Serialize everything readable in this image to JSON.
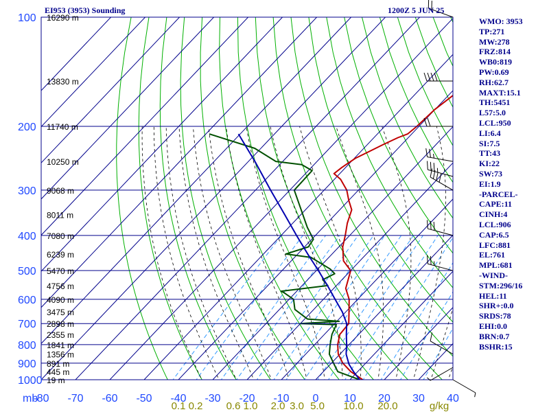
{
  "header": {
    "station": "EI953 (3953) Sounding",
    "time": "1200Z  5 JUN 25"
  },
  "indices": [
    "WMO: 3953",
    "TP:271",
    "MW:278",
    "FRZ:814",
    "WB0:819",
    "PW:0.69",
    "RH:62.7",
    "MAXT:15.1",
    "TH:5451",
    "L57:5.0",
    "LCL:950",
    "LI:6.4",
    "SI:7.5",
    "TT:43",
    "KI:22",
    "SW:73",
    "EI:1.9",
    "-PARCEL-",
    "CAPE:11",
    "CINH:4",
    "LCL:906",
    "CAP:6.5",
    "LFC:881",
    "EL:761",
    "MPL:681",
    "-WIND-",
    "STM:296/16",
    "HEL:11",
    "SHR+:0.0",
    "SRDS:78",
    "EHI:0.0",
    "BRN:0.7",
    "BSHR:15"
  ],
  "colors": {
    "grid": "#00008b",
    "dry_adiabat": "#00b000",
    "moist_adiabat": "#000000",
    "mixing_ratio": "#3399ff",
    "temperature": "#c00000",
    "dewpoint": "#005000",
    "parcel": "#0000b0",
    "axis_text": "#1f48ff",
    "mix_text": "#888800",
    "height_text": "#000000"
  },
  "chart_data": {
    "type": "skew-t",
    "ylabel": "mb",
    "pressure_levels": [
      100,
      200,
      300,
      400,
      500,
      600,
      700,
      800,
      900,
      1000
    ],
    "temperature_ticks": [
      -80,
      -70,
      -60,
      -50,
      -40,
      -30,
      -20,
      -10,
      0,
      10,
      20,
      30,
      40
    ],
    "temperature_tick_labels": [
      "-80",
      "-70",
      "-60",
      "-50",
      "-40",
      "-30",
      "-20",
      "-10",
      "0",
      "10",
      "20",
      "30",
      "40"
    ],
    "mixing_ratio_labels": [
      {
        "label": "0.1",
        "value": -40
      },
      {
        "label": "0.2",
        "value": -35
      },
      {
        "label": "0.6",
        "value": -24
      },
      {
        "label": "1.0",
        "value": -19
      },
      {
        "label": "2.0",
        "value": -11
      },
      {
        "label": "3.0",
        "value": -5.5
      },
      {
        "label": "5.0",
        "value": 0.5
      },
      {
        "label": "10.0",
        "value": 11
      },
      {
        "label": "20.0",
        "value": 21
      },
      {
        "label": "g/kg",
        "value": 36
      }
    ],
    "heights": [
      {
        "p": 100,
        "label": "16290 m"
      },
      {
        "p": 150,
        "label": "13830 m"
      },
      {
        "p": 200,
        "label": "11740 m"
      },
      {
        "p": 250,
        "label": "10250 m"
      },
      {
        "p": 300,
        "label": "9068 m"
      },
      {
        "p": 350,
        "label": "8011 m"
      },
      {
        "p": 400,
        "label": "7080 m"
      },
      {
        "p": 450,
        "label": "6239 m"
      },
      {
        "p": 500,
        "label": "5470 m"
      },
      {
        "p": 550,
        "label": "4756 m"
      },
      {
        "p": 600,
        "label": "4090 m"
      },
      {
        "p": 650,
        "label": "3475 m"
      },
      {
        "p": 700,
        "label": "2898 m"
      },
      {
        "p": 750,
        "label": "2355 m"
      },
      {
        "p": 800,
        "label": "1841 m"
      },
      {
        "p": 850,
        "label": "1356 m"
      },
      {
        "p": 900,
        "label": "891 m"
      },
      {
        "p": 950,
        "label": "445 m"
      },
      {
        "p": 1000,
        "label": "19 m"
      }
    ],
    "series": [
      {
        "id": "temperature",
        "points": [
          {
            "p": 1000,
            "x": 13.7
          },
          {
            "p": 950,
            "x": 8.0
          },
          {
            "p": 900,
            "x": 3.3
          },
          {
            "p": 850,
            "x": -0.5
          },
          {
            "p": 800,
            "x": -3.3
          },
          {
            "p": 750,
            "x": -5.5
          },
          {
            "p": 700,
            "x": -5.9
          },
          {
            "p": 660,
            "x": -8.4
          },
          {
            "p": 600,
            "x": -12.5
          },
          {
            "p": 560,
            "x": -16.5
          },
          {
            "p": 500,
            "x": -20.0
          },
          {
            "p": 470,
            "x": -24.8
          },
          {
            "p": 430,
            "x": -28.9
          },
          {
            "p": 400,
            "x": -31.3
          },
          {
            "p": 370,
            "x": -34.1
          },
          {
            "p": 340,
            "x": -36.5
          },
          {
            "p": 320,
            "x": -40.0
          },
          {
            "p": 300,
            "x": -43.4
          },
          {
            "p": 280,
            "x": -48.2
          },
          {
            "p": 270,
            "x": -51.7
          },
          {
            "p": 260,
            "x": -51.1
          },
          {
            "p": 255,
            "x": -50.7
          },
          {
            "p": 245,
            "x": -49.7
          },
          {
            "p": 235,
            "x": -47.6
          },
          {
            "p": 225,
            "x": -45.5
          },
          {
            "p": 215,
            "x": -43.0
          },
          {
            "p": 210,
            "x": -41.2
          },
          {
            "p": 200,
            "x": -40.6
          },
          {
            "p": 180,
            "x": -40.1
          },
          {
            "p": 165,
            "x": -38.7
          },
          {
            "p": 150,
            "x": -36.8
          },
          {
            "p": 130,
            "x": -35.7
          },
          {
            "p": 115,
            "x": -33.6
          },
          {
            "p": 100,
            "x": -31.7
          }
        ]
      },
      {
        "id": "dewpoint",
        "points": [
          {
            "p": 1000,
            "x": 12.8
          },
          {
            "p": 950,
            "x": 4.2
          },
          {
            "p": 900,
            "x": 0.6
          },
          {
            "p": 850,
            "x": -3.1
          },
          {
            "p": 800,
            "x": -5.5
          },
          {
            "p": 750,
            "x": -7.8
          },
          {
            "p": 705,
            "x": -9.2
          },
          {
            "p": 700,
            "x": -19.9
          },
          {
            "p": 690,
            "x": -9.3
          },
          {
            "p": 680,
            "x": -19.2
          },
          {
            "p": 640,
            "x": -25.5
          },
          {
            "p": 600,
            "x": -28.7
          },
          {
            "p": 575,
            "x": -33.4
          },
          {
            "p": 570,
            "x": -34.6
          },
          {
            "p": 550,
            "x": -22.5
          },
          {
            "p": 530,
            "x": -25.6
          },
          {
            "p": 510,
            "x": -23.8
          },
          {
            "p": 495,
            "x": -26.4
          },
          {
            "p": 460,
            "x": -35.2
          },
          {
            "p": 450,
            "x": -43.5
          },
          {
            "p": 430,
            "x": -38.9
          },
          {
            "p": 410,
            "x": -39.5
          },
          {
            "p": 380,
            "x": -44.6
          },
          {
            "p": 300,
            "x": -58.7
          },
          {
            "p": 265,
            "x": -58.9
          },
          {
            "p": 255,
            "x": -63.6
          },
          {
            "p": 250,
            "x": -72.0
          },
          {
            "p": 230,
            "x": -81.8
          },
          {
            "p": 210,
            "x": -99.0
          }
        ]
      },
      {
        "id": "parcel",
        "points": [
          {
            "p": 1000,
            "x": 12.8
          },
          {
            "p": 950,
            "x": 8.8
          },
          {
            "p": 906,
            "x": 5.4
          },
          {
            "p": 850,
            "x": 1.8
          },
          {
            "p": 800,
            "x": -0.7
          },
          {
            "p": 750,
            "x": -3.6
          },
          {
            "p": 700,
            "x": -6.5
          },
          {
            "p": 650,
            "x": -11.0
          },
          {
            "p": 600,
            "x": -16.6
          },
          {
            "p": 550,
            "x": -22.6
          },
          {
            "p": 500,
            "x": -29.4
          },
          {
            "p": 450,
            "x": -37.1
          },
          {
            "p": 400,
            "x": -45.5
          },
          {
            "p": 350,
            "x": -54.8
          },
          {
            "p": 300,
            "x": -65.6
          },
          {
            "p": 250,
            "x": -78.1
          },
          {
            "p": 210,
            "x": -90.5
          }
        ]
      }
    ],
    "winds": [
      {
        "p": 100,
        "dir": 290,
        "kt": 20
      },
      {
        "p": 150,
        "dir": 270,
        "kt": 40
      },
      {
        "p": 200,
        "dir": 270,
        "kt": 20
      },
      {
        "p": 250,
        "dir": 280,
        "kt": 25
      },
      {
        "p": 275,
        "dir": 285,
        "kt": 35
      },
      {
        "p": 300,
        "dir": 300,
        "kt": 40
      },
      {
        "p": 400,
        "dir": 285,
        "kt": 30
      },
      {
        "p": 500,
        "dir": 285,
        "kt": 25
      },
      {
        "p": 850,
        "dir": 300,
        "kt": 10
      },
      {
        "p": 925,
        "dir": 240,
        "kt": 5
      },
      {
        "p": 1000,
        "dir": 120,
        "kt": 5
      }
    ],
    "grid": true
  }
}
